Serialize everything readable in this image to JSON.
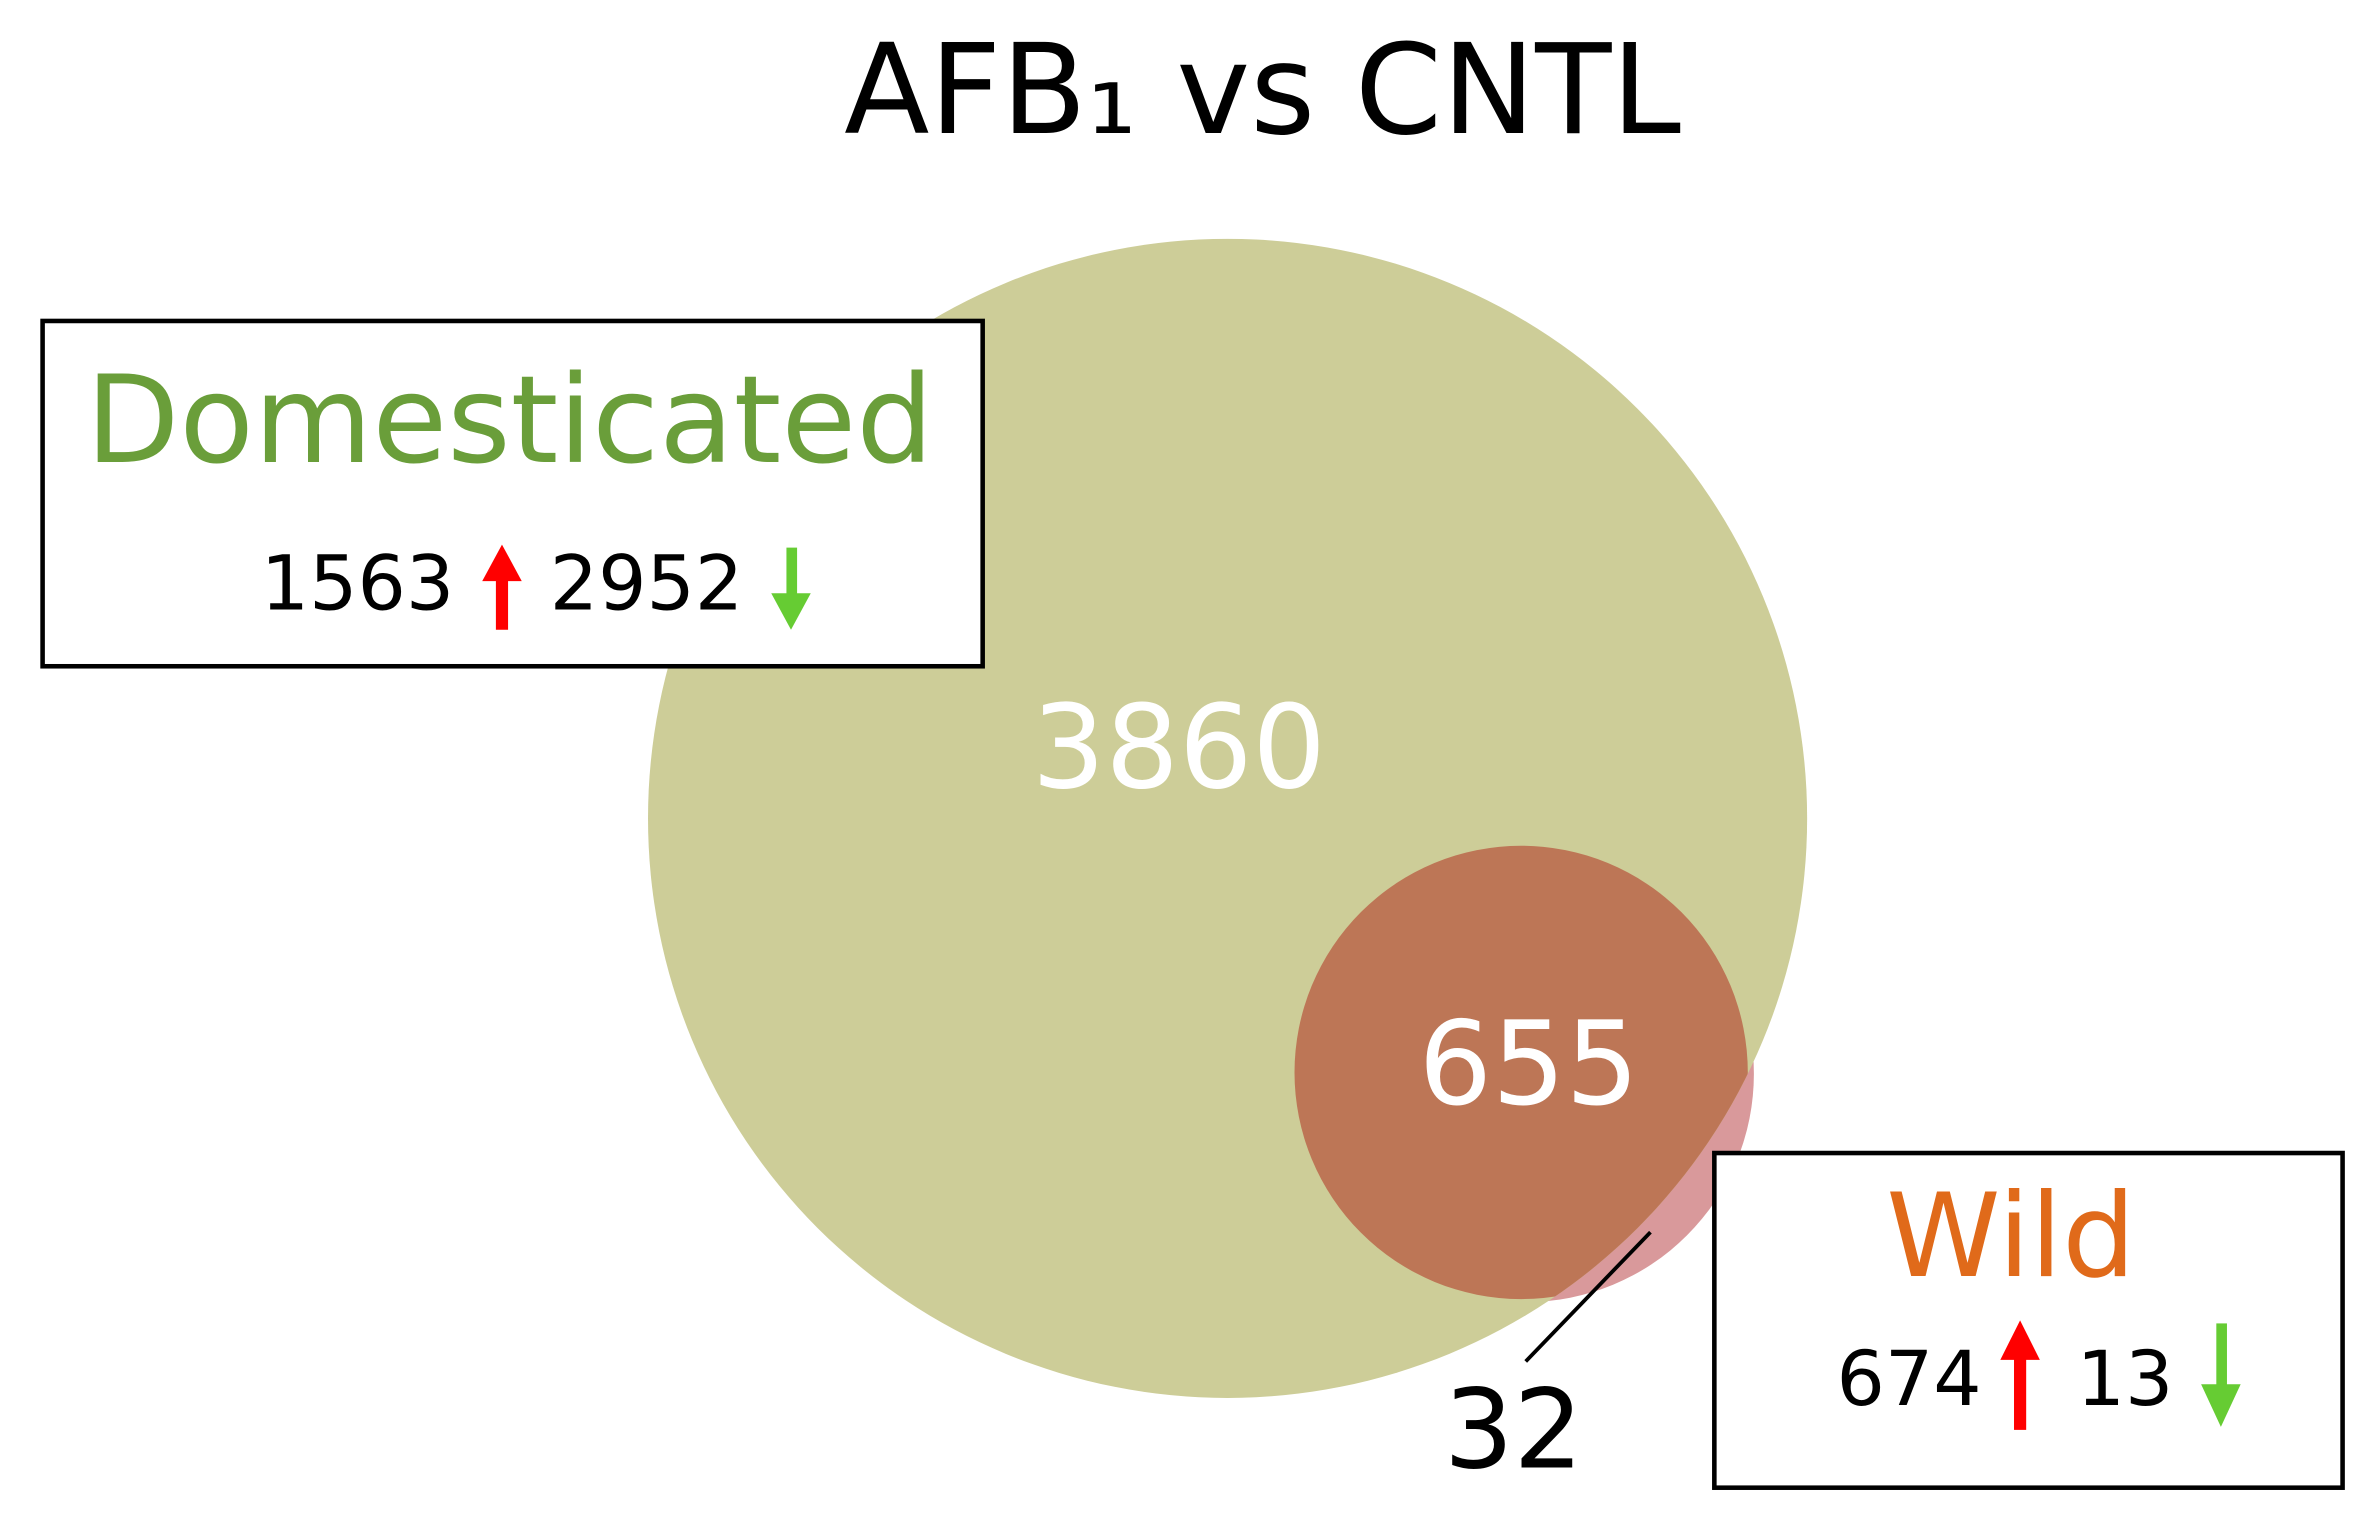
{
  "title": "AFB₁ vs CNTL",
  "sets": [
    {
      "name": "Domesticated",
      "up": "1563",
      "down": "2952"
    },
    {
      "name": "Wild",
      "up": "674",
      "down": "13"
    }
  ],
  "regions": {
    "domesticated_only": "3860",
    "overlap": "655",
    "wild_only": "32"
  }
}
